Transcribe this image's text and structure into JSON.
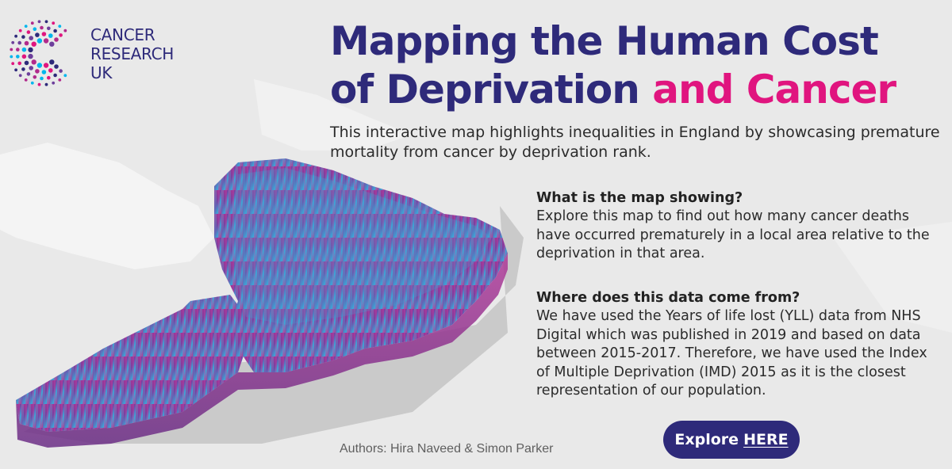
{
  "brand": {
    "logo_lines": [
      "CANCER",
      "RESEARCH",
      "UK"
    ],
    "primary_color": "#2e2a7a",
    "accent_color": "#e0157f"
  },
  "header": {
    "title_main_line1": "Mapping the Human Cost",
    "title_main_line2": "of Deprivation",
    "title_accent": "and Cancer"
  },
  "intro": {
    "text": "This interactive map highlights inequalities in England by showcasing premature mortality from cancer by deprivation rank."
  },
  "sections": [
    {
      "heading": "What is the map showing?",
      "body": "Explore this map to find out how many cancer deaths have occurred prematurely in a local area relative to the deprivation in that area."
    },
    {
      "heading": "Where does this data come from?",
      "body": "We have used the Years of life lost (YLL) data from NHS Digital which was published in 2019 and based on data between 2015-2017. Therefore, we have used the Index of Multiple Deprivation (IMD) 2015 as it is the closest representation of our population."
    }
  ],
  "footer": {
    "authors": "Authors: Hira Naveed & Simon Parker",
    "explore_label": "Explore",
    "explore_link": "HERE"
  },
  "map": {
    "colors": {
      "magenta": "#c2308f",
      "purple": "#7b3fa1",
      "blue": "#3aa8d8",
      "shadow": "#b9b9b9"
    }
  }
}
